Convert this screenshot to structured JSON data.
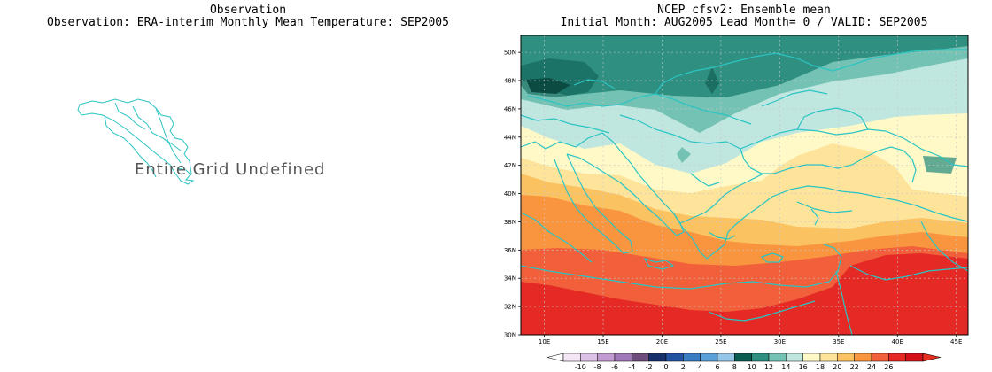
{
  "left_panel": {
    "title_line1": "Observation",
    "title_line2": "Observation: ERA-interim Monthly Mean Temperature: SEP2005",
    "message": "Entire Grid Undefined"
  },
  "right_panel": {
    "title_line1": "NCEP cfsv2: Ensemble mean",
    "title_line2": "Initial Month: AUG2005  Lead Month= 0 / VALID: SEP2005",
    "lat_ticks": [
      "50N",
      "48N",
      "46N",
      "44N",
      "42N",
      "40N",
      "38N",
      "36N",
      "34N",
      "32N",
      "30N"
    ],
    "lon_ticks": [
      "10E",
      "15E",
      "20E",
      "25E",
      "30E",
      "35E",
      "40E",
      "45E"
    ]
  },
  "colorbar": {
    "labels": [
      "-10",
      "-8",
      "-6",
      "-4",
      "-2",
      "0",
      "2",
      "4",
      "6",
      "8",
      "10",
      "12",
      "14",
      "16",
      "18",
      "20",
      "22",
      "24",
      "26"
    ],
    "colors": [
      "#f5e6f5",
      "#dcc0e6",
      "#c29ad2",
      "#9f78b8",
      "#6e4d7c",
      "#17306b",
      "#2353a0",
      "#3a7dc3",
      "#5b9fd8",
      "#95c5e7",
      "#0b5b50",
      "#2f8f80",
      "#73c2b3",
      "#bfe7e0",
      "#fff9c8",
      "#fde49a",
      "#fbc262",
      "#f9953f",
      "#f1603a",
      "#e52a25",
      "#d3101a"
    ],
    "overflow_high_color": "#e53020",
    "overflow_low_color": "#ffffff"
  },
  "colors": {
    "coastline": "#2bc4c4",
    "grid": "#bbbbbb"
  }
}
